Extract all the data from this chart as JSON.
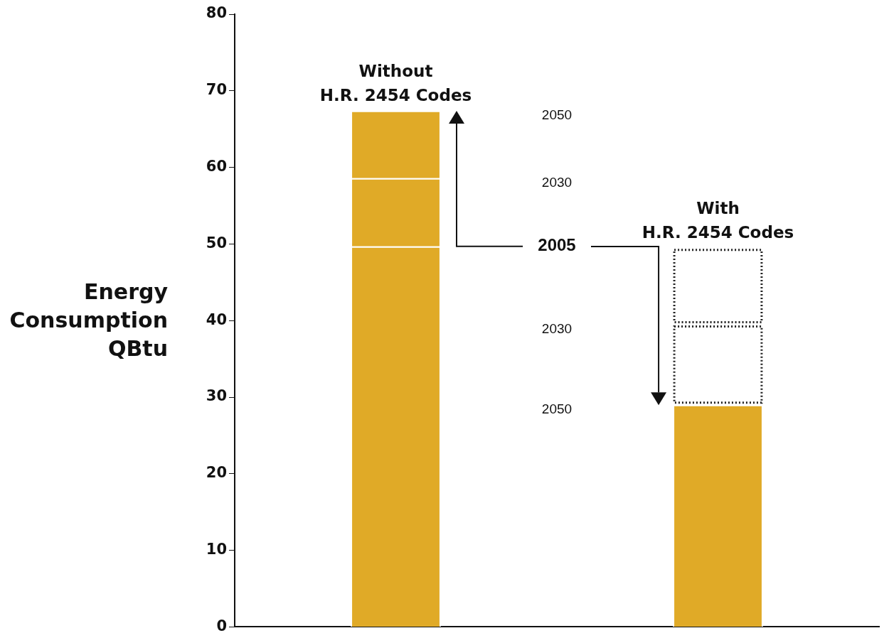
{
  "chart_data": {
    "type": "bar",
    "stacked": true,
    "ylabel": "Energy Consumption QBtu",
    "categories": [
      "Without H.R. 2454 Codes",
      "With H.R. 2454 Codes"
    ],
    "series": [
      {
        "color": "#e0aa27",
        "values": [
          49.7,
          29.0
        ]
      },
      {
        "color": "#e0aa27",
        "values": [
          8.9,
          null
        ]
      },
      {
        "color": "#e0aa27",
        "values": [
          8.8,
          null
        ]
      },
      {
        "color": "#222222",
        "line_style": "dotted",
        "values": [
          null,
          10.5
        ]
      },
      {
        "color": "#222222",
        "line_style": "dotted",
        "values": [
          null,
          10.0
        ]
      }
    ],
    "ylim": [
      0,
      80
    ],
    "yticks": [
      0,
      10,
      20,
      30,
      40,
      50,
      60,
      70,
      80
    ],
    "grid": false,
    "legend": false,
    "annotations": [
      "2050",
      "2030",
      "2005",
      "2030",
      "2050"
    ]
  }
}
